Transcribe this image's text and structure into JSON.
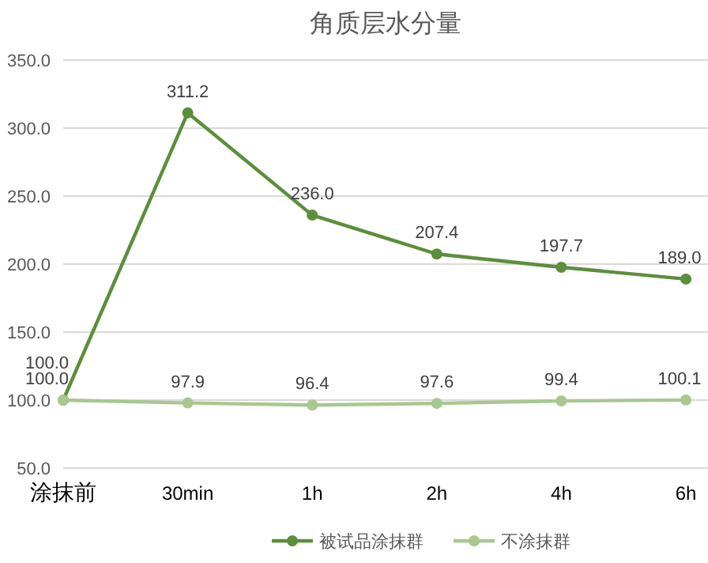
{
  "chart_data": {
    "type": "line",
    "title": "角质层水分量",
    "categories": [
      "涂抹前",
      "30min",
      "1h",
      "2h",
      "4h",
      "6h"
    ],
    "series": [
      {
        "name": "被试品涂抹群",
        "color": "#5b8f3a",
        "values": [
          100.0,
          311.2,
          236.0,
          207.4,
          197.7,
          189.0
        ],
        "value_labels": [
          "100.0",
          "311.2",
          "236.0",
          "207.4",
          "197.7",
          "189.0"
        ]
      },
      {
        "name": "不涂抹群",
        "color": "#a8c88e",
        "values": [
          100.0,
          97.9,
          96.4,
          97.6,
          99.4,
          100.1
        ],
        "value_labels": [
          "100.0",
          "97.9",
          "96.4",
          "97.6",
          "99.4",
          "100.1"
        ]
      }
    ],
    "ylim": [
      50,
      350
    ],
    "yticks": [
      {
        "value": 50,
        "label": "50.0"
      },
      {
        "value": 100,
        "label": "100.0"
      },
      {
        "value": 150,
        "label": "150.0"
      },
      {
        "value": 200,
        "label": "200.0"
      },
      {
        "value": 250,
        "label": "250.0"
      },
      {
        "value": 300,
        "label": "300.0"
      },
      {
        "value": 350,
        "label": "350.0"
      }
    ],
    "grid": "y",
    "legend": "bottom right",
    "marker": "circle",
    "line_style": "solid"
  }
}
